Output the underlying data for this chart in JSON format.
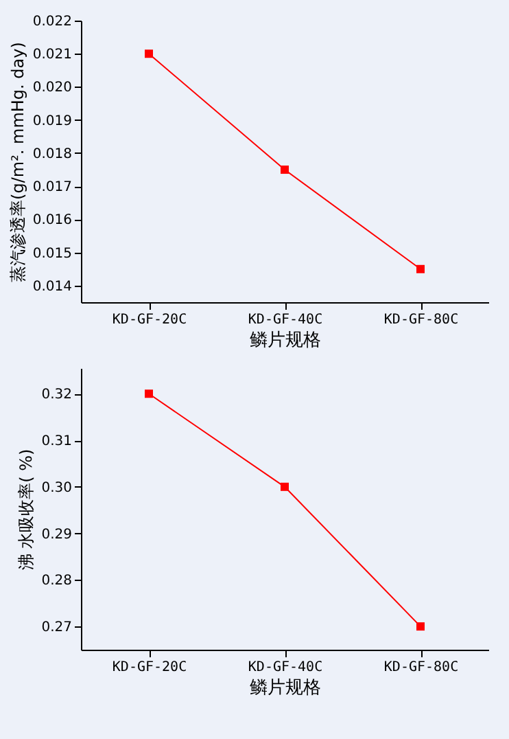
{
  "chart_data": [
    {
      "type": "line",
      "xlabel": "鳞片规格",
      "ylabel": "蒸汽渗透率(g/m². mmHg. day)",
      "categories": [
        "KD-GF-20C",
        "KD-GF-40C",
        "KD-GF-80C"
      ],
      "series": [
        {
          "color": "#ff0000",
          "values": [
            0.021,
            0.0175,
            0.0145
          ]
        }
      ],
      "ylim": [
        0.0135,
        0.022
      ],
      "yticks": [
        0.014,
        0.015,
        0.016,
        0.017,
        0.018,
        0.019,
        {
          "value": 0.02,
          "label": "0.020"
        },
        0.021,
        0.022
      ],
      "grid": false,
      "legend": false,
      "marker": "square",
      "line_style": "solid"
    },
    {
      "type": "line",
      "xlabel": "鳞片规格",
      "ylabel": "沸 水吸收率( %)",
      "categories": [
        "KD-GF-20C",
        "KD-GF-40C",
        "KD-GF-80C"
      ],
      "series": [
        {
          "color": "#ff0000",
          "values": [
            0.32,
            0.3,
            0.27
          ]
        }
      ],
      "ylim": [
        0.265,
        0.3255
      ],
      "yticks": [
        0.27,
        0.28,
        0.29,
        {
          "value": 0.3,
          "label": "0.30"
        },
        0.31,
        0.32
      ],
      "grid": false,
      "legend": false,
      "marker": "square",
      "line_style": "solid"
    }
  ]
}
